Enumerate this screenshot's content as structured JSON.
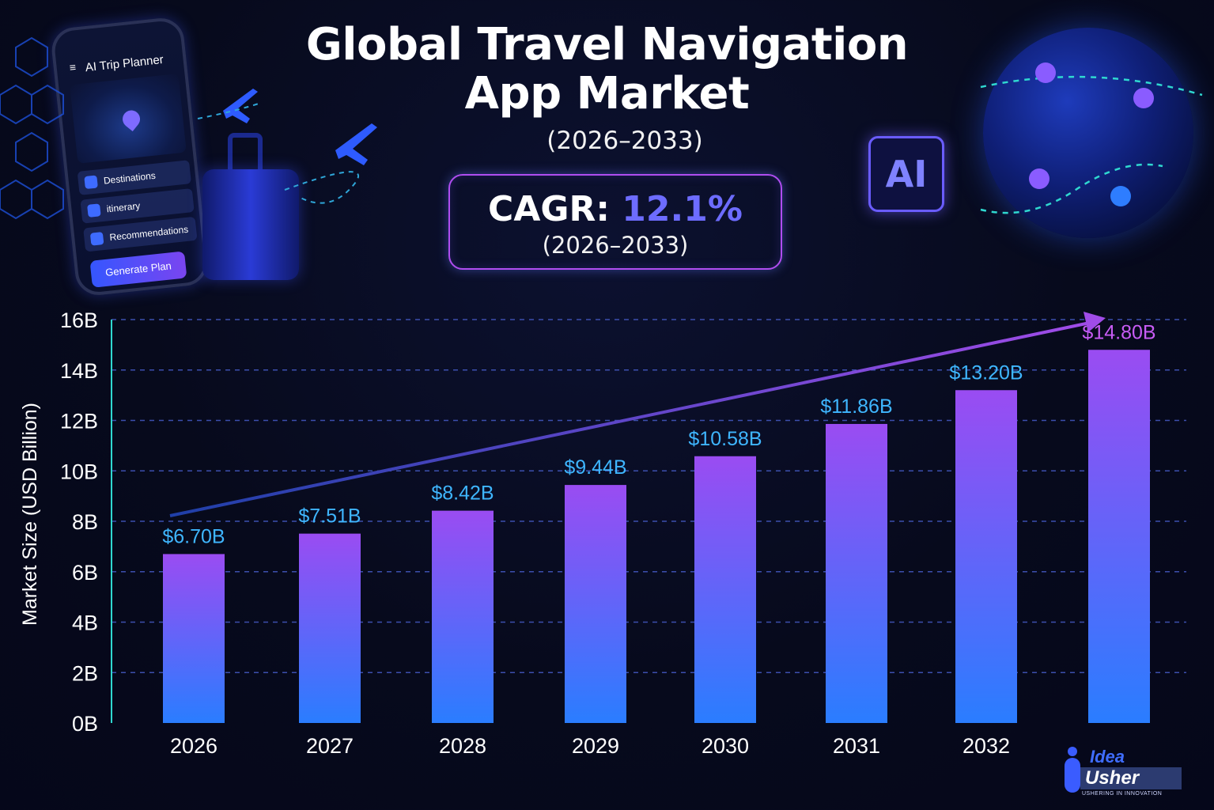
{
  "header": {
    "title_line1": "Global Travel Navigation",
    "title_line2": "App Market",
    "years": "(2026–2033)"
  },
  "cagr": {
    "label": "CAGR:",
    "value": "12.1%",
    "years": "(2026–2033)"
  },
  "phone": {
    "title": "AI Trip Planner",
    "menu_icon": "≡",
    "items": [
      "Destinations",
      "itinerary",
      "Recommendations"
    ],
    "button": "Generate Plan"
  },
  "ai_chip": {
    "label": "AI"
  },
  "logo": {
    "line1": "Idea",
    "line2": "Usher",
    "tagline": "USHERING IN INNOVATION"
  },
  "colors": {
    "bar_top": "#9a4cf2",
    "bar_bottom": "#2a7dff",
    "value_label": "#3fb6ff",
    "last_value_label": "#c85cf5",
    "axis": "#2fd8d0",
    "grid": "#3c4fae",
    "arrow_start": "#1f3fa8",
    "arrow_end": "#a04ce8"
  },
  "chart_data": {
    "type": "bar",
    "categories": [
      "2026",
      "2027",
      "2028",
      "2029",
      "2030",
      "2031",
      "2032",
      ""
    ],
    "values": [
      6.7,
      7.51,
      8.42,
      9.44,
      10.58,
      11.86,
      13.2,
      14.8
    ],
    "value_labels": [
      "$6.70B",
      "$7.51B",
      "$8.42B",
      "$9.44B",
      "$10.58B",
      "$11.86B",
      "$13.20B",
      "$14.80B"
    ],
    "ylabel": "Market Size (USD Billion)",
    "yticks": [
      "0B",
      "2B",
      "4B",
      "6B",
      "8B",
      "10B",
      "12B",
      "14B",
      "16B"
    ],
    "ylim": [
      0,
      16
    ],
    "grid": true,
    "trend_arrow": true
  }
}
